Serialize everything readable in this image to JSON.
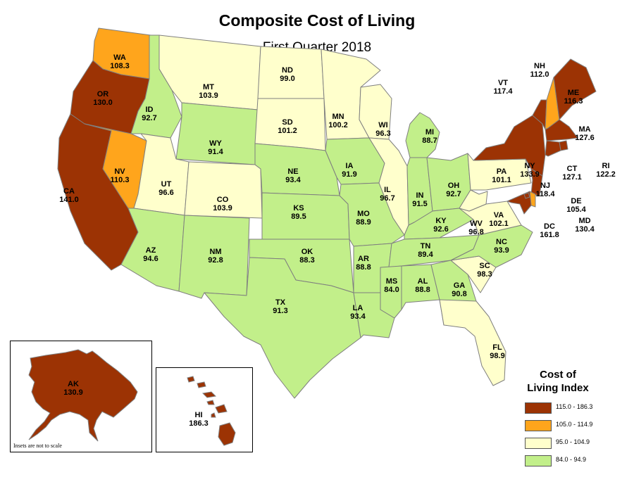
{
  "title": "Composite Cost of Living",
  "subtitle": "First Quarter 2018",
  "colors": {
    "high": "#9c3304",
    "mid_high": "#ffa51c",
    "mid": "#ffffcc",
    "low": "#c2ef8a",
    "border": "#7f7f7f"
  },
  "legend": {
    "title_line1": "Cost of",
    "title_line2": "Living Index",
    "items": [
      {
        "range": "115.0 - 186.3",
        "color": "#9c3304"
      },
      {
        "range": "105.0 - 114.9",
        "color": "#ffa51c"
      },
      {
        "range": "95.0 - 104.9",
        "color": "#ffffcc"
      },
      {
        "range": "84.0 - 94.9",
        "color": "#c2ef8a"
      }
    ]
  },
  "inset_note": "Insets are not to scale",
  "states": [
    {
      "code": "WA",
      "value": "108.3"
    },
    {
      "code": "OR",
      "value": "130.0"
    },
    {
      "code": "CA",
      "value": "141.0"
    },
    {
      "code": "NV",
      "value": "110.3"
    },
    {
      "code": "ID",
      "value": "92.7"
    },
    {
      "code": "MT",
      "value": "103.9"
    },
    {
      "code": "WY",
      "value": "91.4"
    },
    {
      "code": "UT",
      "value": "96.6"
    },
    {
      "code": "CO",
      "value": "103.9"
    },
    {
      "code": "AZ",
      "value": "94.6"
    },
    {
      "code": "NM",
      "value": "92.8"
    },
    {
      "code": "ND",
      "value": "99.0"
    },
    {
      "code": "SD",
      "value": "101.2"
    },
    {
      "code": "NE",
      "value": "93.4"
    },
    {
      "code": "KS",
      "value": "89.5"
    },
    {
      "code": "OK",
      "value": "88.3"
    },
    {
      "code": "TX",
      "value": "91.3"
    },
    {
      "code": "MN",
      "value": "100.2"
    },
    {
      "code": "IA",
      "value": "91.9"
    },
    {
      "code": "MO",
      "value": "88.9"
    },
    {
      "code": "AR",
      "value": "88.8"
    },
    {
      "code": "LA",
      "value": "93.4"
    },
    {
      "code": "WI",
      "value": "96.3"
    },
    {
      "code": "IL",
      "value": "96.7"
    },
    {
      "code": "MI",
      "value": "88.7"
    },
    {
      "code": "IN",
      "value": "91.5"
    },
    {
      "code": "OH",
      "value": "92.7"
    },
    {
      "code": "KY",
      "value": "92.6"
    },
    {
      "code": "TN",
      "value": "89.4"
    },
    {
      "code": "MS",
      "value": "84.0"
    },
    {
      "code": "AL",
      "value": "88.8"
    },
    {
      "code": "GA",
      "value": "90.8"
    },
    {
      "code": "FL",
      "value": "98.9"
    },
    {
      "code": "SC",
      "value": "98.3"
    },
    {
      "code": "NC",
      "value": "93.9"
    },
    {
      "code": "VA",
      "value": "102.1"
    },
    {
      "code": "WV",
      "value": "96.8"
    },
    {
      "code": "PA",
      "value": "101.1"
    },
    {
      "code": "NY",
      "value": "133.9"
    },
    {
      "code": "VT",
      "value": "117.4"
    },
    {
      "code": "NH",
      "value": "112.0"
    },
    {
      "code": "ME",
      "value": "116.3"
    },
    {
      "code": "MA",
      "value": "127.6"
    },
    {
      "code": "RI",
      "value": "122.2"
    },
    {
      "code": "CT",
      "value": "127.1"
    },
    {
      "code": "NJ",
      "value": "118.4"
    },
    {
      "code": "DE",
      "value": "105.4"
    },
    {
      "code": "MD",
      "value": "130.4"
    },
    {
      "code": "DC",
      "value": "161.8"
    },
    {
      "code": "AK",
      "value": "130.9"
    },
    {
      "code": "HI",
      "value": "186.3"
    }
  ]
}
